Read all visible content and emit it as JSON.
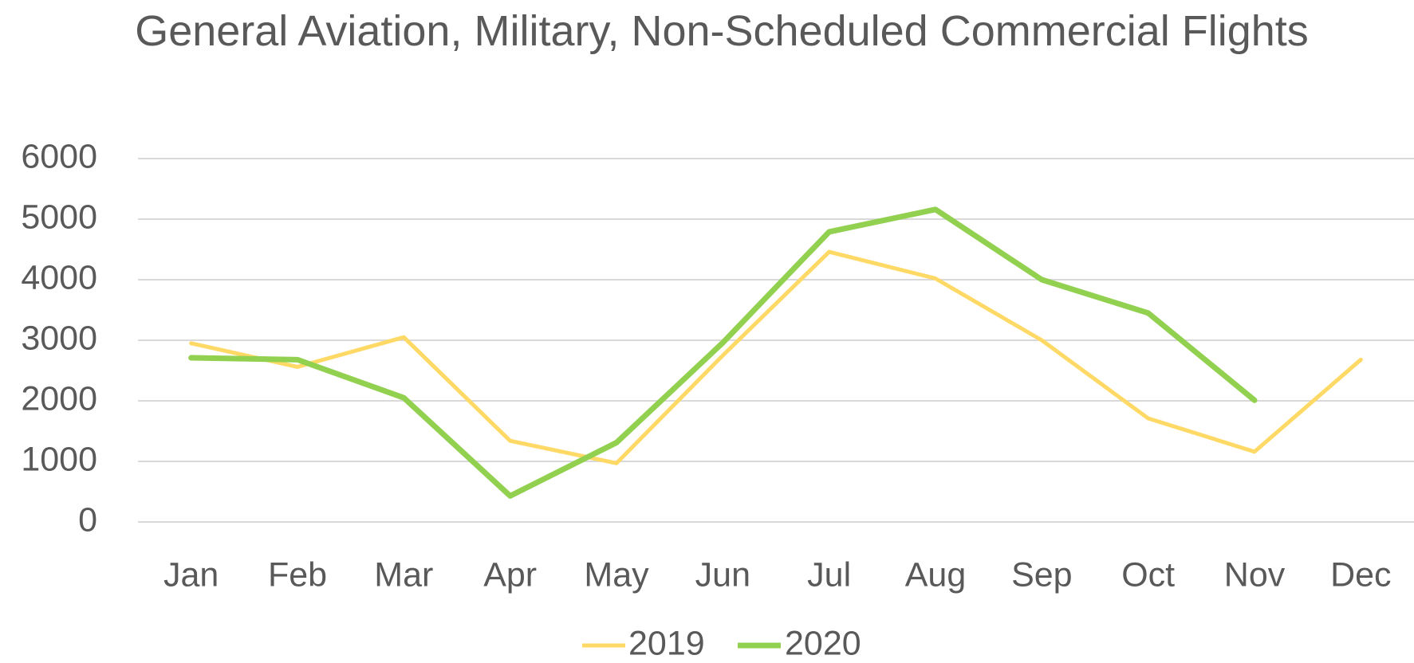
{
  "chart_data": {
    "type": "line",
    "title": "General Aviation, Military, Non-Scheduled Commercial Flights",
    "categories": [
      "Jan",
      "Feb",
      "Mar",
      "Apr",
      "May",
      "Jun",
      "Jul",
      "Aug",
      "Sep",
      "Oct",
      "Nov",
      "Dec"
    ],
    "series": [
      {
        "name": "2019",
        "color": "#ffd966",
        "values": [
          2950,
          2560,
          3050,
          1340,
          970,
          2750,
          4460,
          4020,
          3000,
          1710,
          1160,
          2680
        ]
      },
      {
        "name": "2020",
        "color": "#92d050",
        "values": [
          2710,
          2680,
          2050,
          430,
          1310,
          2960,
          4790,
          5160,
          4000,
          3450,
          2010,
          null
        ]
      }
    ],
    "ylim": [
      0,
      6000
    ],
    "yticks": [
      0,
      1000,
      2000,
      3000,
      4000,
      5000,
      6000
    ],
    "grid": true,
    "legend": "bottom"
  }
}
